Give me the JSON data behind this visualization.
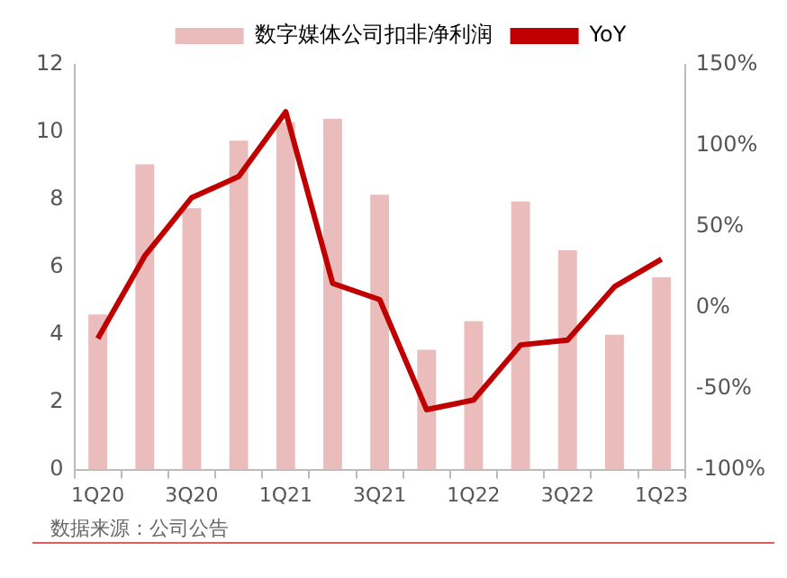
{
  "chart_data": {
    "type": "bar",
    "categories": [
      "1Q20",
      null,
      "3Q20",
      null,
      "1Q21",
      null,
      "3Q21",
      null,
      "1Q22",
      null,
      "3Q22",
      null,
      "1Q23"
    ],
    "series": [
      {
        "name": "数字媒体公司扣非净利润",
        "color": "#ebbcbc",
        "values": [
          4.6,
          9.05,
          7.75,
          9.75,
          10.3,
          10.4,
          8.15,
          3.55,
          4.4,
          7.95,
          6.5,
          4.0,
          5.7
        ]
      },
      {
        "name": "YoY",
        "type": "line",
        "axis": "y2",
        "color": "#c00000",
        "values": [
          -19,
          32,
          68,
          81,
          121,
          15,
          5,
          -63,
          -57,
          -23,
          -20,
          13,
          30
        ]
      }
    ],
    "ylim": [
      0,
      12
    ],
    "yticks": [
      0,
      2,
      4,
      6,
      8,
      10,
      12
    ],
    "y2lim": [
      -100,
      150
    ],
    "y2ticks": [
      {
        "value": -100,
        "label": "-100%"
      },
      {
        "value": -50,
        "label": "-50%"
      },
      {
        "value": 0,
        "label": "0%"
      },
      {
        "value": 50,
        "label": "50%"
      },
      {
        "value": 100,
        "label": "100%"
      },
      {
        "value": 150,
        "label": "150%"
      }
    ],
    "legend": "top",
    "grid": false,
    "marker": "none",
    "annotations": [
      "数据来源：公司公告"
    ]
  }
}
